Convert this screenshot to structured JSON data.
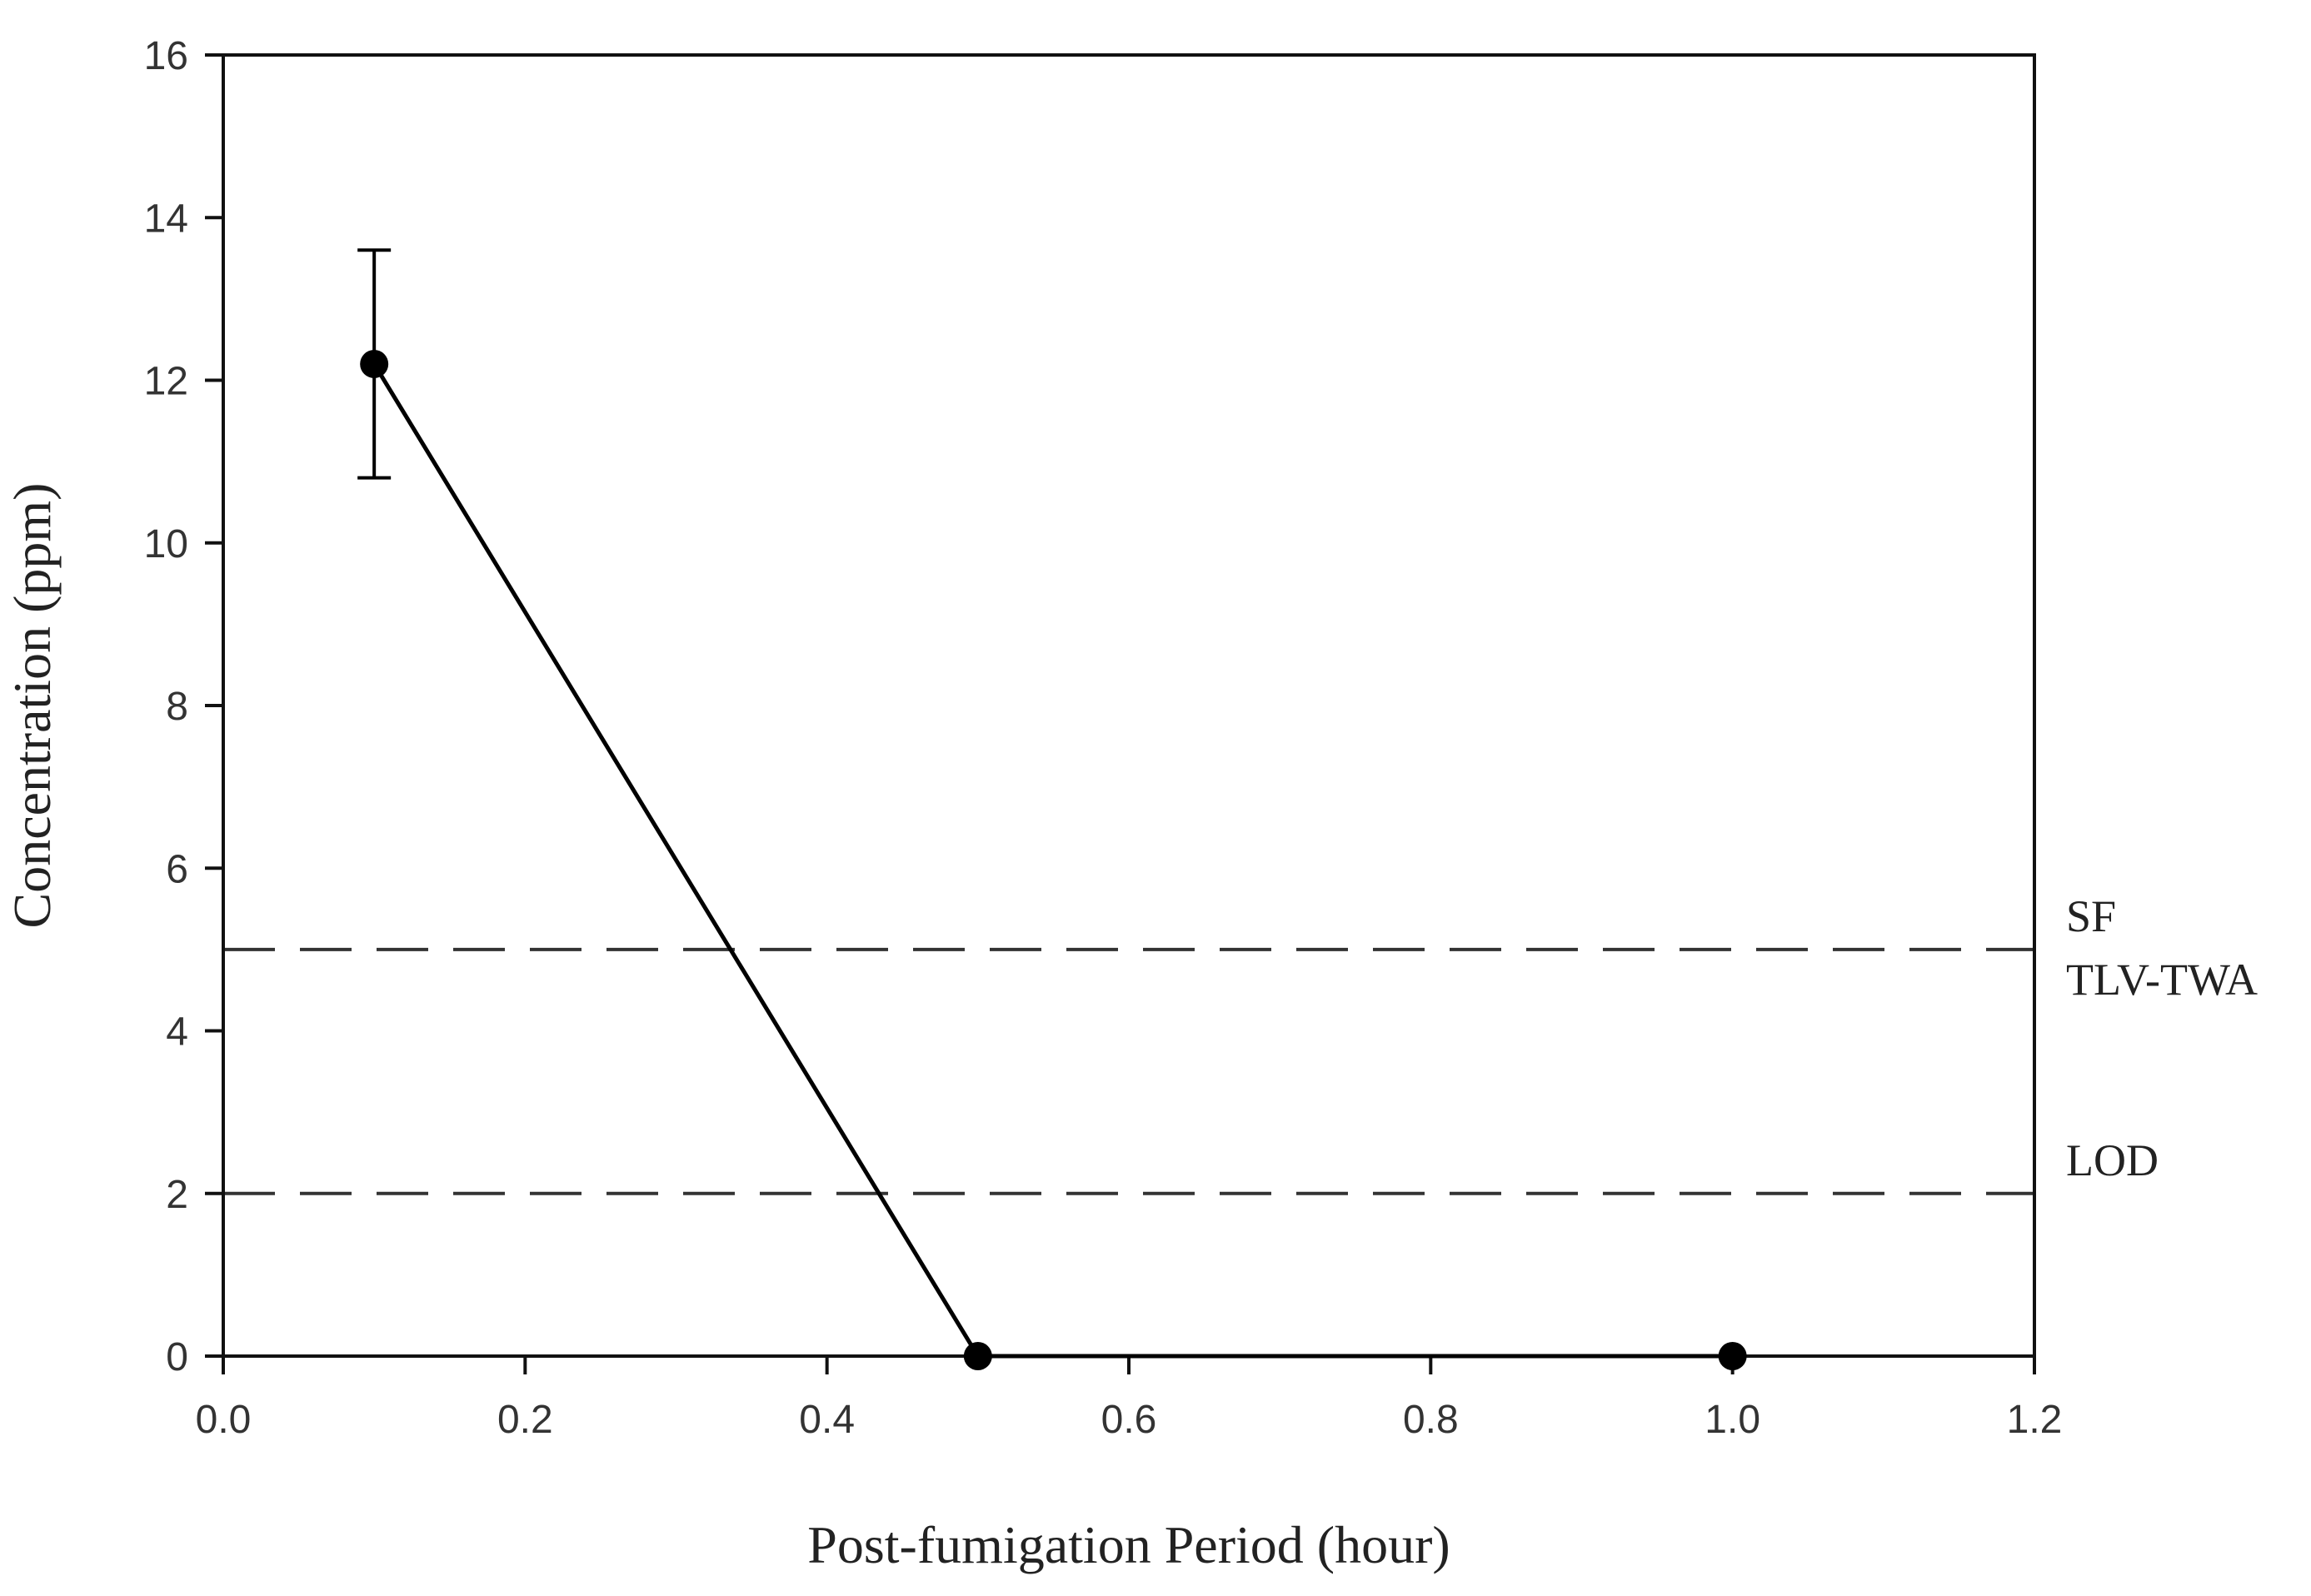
{
  "chart_data": {
    "type": "line",
    "title": "",
    "xlabel": "Post-fumigation Period (hour)",
    "ylabel": "Concentration (ppm)",
    "xlim": [
      0.0,
      1.2
    ],
    "ylim": [
      0,
      16
    ],
    "x_ticks": [
      "0.0",
      "0.2",
      "0.4",
      "0.6",
      "0.8",
      "1.0",
      "1.2"
    ],
    "y_ticks": [
      "0",
      "2",
      "4",
      "6",
      "8",
      "10",
      "12",
      "14",
      "16"
    ],
    "grid": false,
    "series": [
      {
        "x": [
          0.1,
          0.5,
          1.0
        ],
        "y": [
          12.2,
          0,
          0
        ],
        "error": [
          1.4,
          0,
          0
        ],
        "color": "#000000",
        "marker": "circle"
      }
    ],
    "reference_lines": [
      {
        "y": 5,
        "label_lines": [
          "SF",
          "TLV-TWA"
        ],
        "style": "dashed",
        "color": "#333333"
      },
      {
        "y": 2,
        "label_lines": [
          "LOD"
        ],
        "style": "dashed",
        "color": "#333333"
      }
    ]
  }
}
